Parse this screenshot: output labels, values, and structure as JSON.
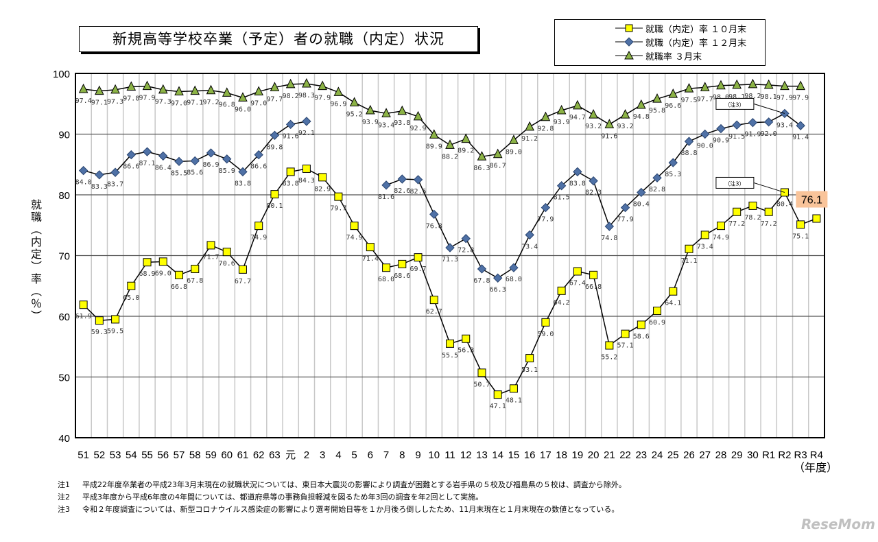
{
  "chart_data": {
    "type": "line",
    "title": "新規高等学校卒業（予定）者の就職（内定）状況",
    "ylabel": "就職（内定）率（％）",
    "xlabel": "（年度）",
    "ylim": [
      40,
      100
    ],
    "yticks": [
      40,
      50,
      60,
      70,
      80,
      90,
      100
    ],
    "grid": true,
    "legend_position": "top-right",
    "categories": [
      "51",
      "52",
      "53",
      "54",
      "55",
      "56",
      "57",
      "58",
      "59",
      "60",
      "61",
      "62",
      "63",
      "元",
      "2",
      "3",
      "4",
      "5",
      "6",
      "7",
      "8",
      "9",
      "10",
      "11",
      "12",
      "13",
      "14",
      "15",
      "16",
      "17",
      "18",
      "19",
      "20",
      "21",
      "22",
      "23",
      "24",
      "25",
      "26",
      "27",
      "28",
      "29",
      "30",
      "R1",
      "R2",
      "R3",
      "R4"
    ],
    "series": [
      {
        "name": "就職（内定）率 １０月末",
        "marker": "square",
        "color": "#ffff00",
        "values": [
          61.9,
          59.3,
          59.5,
          65.0,
          68.9,
          69.0,
          66.8,
          67.8,
          71.7,
          70.6,
          67.7,
          74.9,
          80.1,
          83.8,
          84.3,
          82.9,
          79.7,
          74.9,
          71.4,
          68.0,
          68.6,
          69.7,
          62.7,
          55.5,
          56.3,
          50.7,
          47.1,
          48.1,
          53.1,
          59.0,
          64.2,
          67.4,
          66.8,
          55.2,
          57.1,
          58.6,
          60.9,
          64.1,
          71.1,
          73.4,
          74.9,
          77.2,
          78.2,
          77.2,
          80.4,
          75.1,
          76.1
        ]
      },
      {
        "name": "就職（内定）率 １２月末",
        "marker": "diamond",
        "color": "#4f71a6",
        "values": [
          84.0,
          83.3,
          83.7,
          86.6,
          87.1,
          86.4,
          85.5,
          85.6,
          86.9,
          85.9,
          83.8,
          86.6,
          89.8,
          91.6,
          92.1,
          null,
          null,
          null,
          null,
          81.6,
          82.6,
          82.5,
          76.8,
          71.3,
          72.8,
          67.8,
          66.3,
          68.0,
          73.4,
          77.9,
          81.5,
          83.8,
          82.3,
          74.8,
          77.9,
          80.4,
          82.8,
          85.3,
          88.8,
          90.0,
          90.9,
          91.5,
          91.9,
          92.0,
          93.4,
          91.4,
          null
        ]
      },
      {
        "name": "就職率 ３月末",
        "marker": "triangle",
        "color": "#8cb346",
        "values": [
          97.4,
          97.1,
          97.3,
          97.8,
          97.9,
          97.3,
          97.0,
          97.1,
          97.2,
          96.8,
          96.0,
          97.0,
          97.7,
          98.2,
          98.3,
          97.9,
          96.9,
          95.2,
          93.9,
          93.4,
          93.8,
          92.9,
          89.9,
          88.2,
          89.2,
          86.3,
          86.7,
          89.0,
          91.2,
          92.8,
          93.9,
          94.7,
          93.2,
          91.6,
          93.2,
          94.8,
          95.8,
          96.6,
          97.5,
          97.7,
          98.0,
          98.1,
          98.2,
          98.1,
          97.9,
          97.9,
          null
        ]
      }
    ],
    "annotations": [
      {
        "text": "（注3）",
        "series": 1,
        "category": "R2"
      },
      {
        "text": "（注3）",
        "series": 0,
        "category": "R2"
      },
      {
        "text": "76.1",
        "series": 0,
        "category": "R4",
        "highlight": "#f9c49a"
      }
    ]
  },
  "notes": [
    {
      "label": "注1",
      "text": "平成22年度卒業者の平成23年3月末現在の就職状況については、東日本大震災の影響により調査が困難とする岩手県の５校及び福島県の５校は、調査から除外。"
    },
    {
      "label": "注2",
      "text": "平成3年度から平成6年度の4年間については、都道府県等の事務負担軽減を図るため年3回の調査を年2回として実施。"
    },
    {
      "label": "注3",
      "text": "令和２年度調査については、新型コロナウイルス感染症の影響により選考開始日等を１か月後ろ倒ししたため、11月末現在と１月末現在の数値となっている。"
    }
  ],
  "watermark": "ReseMom"
}
